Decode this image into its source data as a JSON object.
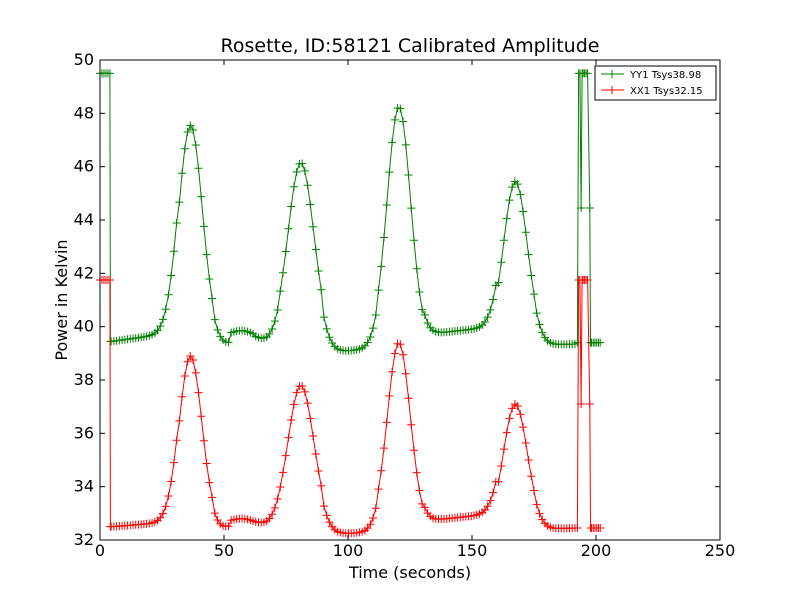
{
  "chart_data": {
    "type": "line",
    "title": "Rosette, ID:58121 Calibrated Amplitude",
    "xlabel": "Time (seconds)",
    "ylabel": "Power in Kelvin",
    "xlim": [
      0,
      250
    ],
    "ylim": [
      32,
      50
    ],
    "xticks": [
      "0",
      "50",
      "100",
      "150",
      "200",
      "250"
    ],
    "yticks": [
      "32",
      "34",
      "36",
      "38",
      "40",
      "42",
      "44",
      "46",
      "48",
      "50"
    ],
    "grid": false,
    "legend_position": "top-right",
    "marker": "+",
    "series": [
      {
        "name": "YY1 Tsys38.98",
        "color": "#008000",
        "baseline": 39.45,
        "spike": 49.5,
        "low": 39.4,
        "bumps": [
          {
            "center": 36.5,
            "height": 8.1,
            "width": 4.8
          },
          {
            "center": 57.0,
            "height": 0.4,
            "width": 5.5
          },
          {
            "center": 81.0,
            "height": 6.7,
            "width": 5.2
          },
          {
            "center": 120.5,
            "height": 8.8,
            "width": 4.7
          },
          {
            "center": 167.5,
            "height": 6.0,
            "width": 4.8
          }
        ],
        "ramps": [
          {
            "x0": 5,
            "x1": 32,
            "from": 39.45,
            "to": 39.8
          },
          {
            "x0": 46,
            "x1": 52,
            "from": 39.2,
            "to": 39.1
          },
          {
            "x0": 62,
            "x1": 72,
            "from": 39.4,
            "to": 39.3
          },
          {
            "x0": 90,
            "x1": 112,
            "from": 39.0,
            "to": 39.2
          },
          {
            "x0": 130,
            "x1": 160,
            "from": 39.7,
            "to": 40.0
          },
          {
            "x0": 176,
            "x1": 192,
            "from": 39.3,
            "to": 39.35
          }
        ]
      },
      {
        "name": "XX1 Tsys32.15",
        "color": "#ff0000",
        "baseline": 32.5,
        "spike": 41.75,
        "low": 32.45,
        "bumps": [
          {
            "center": 36.5,
            "height": 6.4,
            "width": 4.6
          },
          {
            "center": 57.0,
            "height": 0.3,
            "width": 5.5
          },
          {
            "center": 81.0,
            "height": 5.3,
            "width": 5.2
          },
          {
            "center": 120.5,
            "height": 6.9,
            "width": 4.6
          },
          {
            "center": 167.5,
            "height": 4.6,
            "width": 4.8
          }
        ],
        "ramps": [
          {
            "x0": 5,
            "x1": 32,
            "from": 32.5,
            "to": 32.7
          },
          {
            "x0": 46,
            "x1": 52,
            "from": 32.3,
            "to": 32.3
          },
          {
            "x0": 62,
            "x1": 72,
            "from": 32.5,
            "to": 32.5
          },
          {
            "x0": 90,
            "x1": 112,
            "from": 32.2,
            "to": 32.3
          },
          {
            "x0": 130,
            "x1": 160,
            "from": 32.7,
            "to": 33.0
          },
          {
            "x0": 176,
            "x1": 192,
            "from": 32.4,
            "to": 32.45
          }
        ]
      }
    ]
  }
}
